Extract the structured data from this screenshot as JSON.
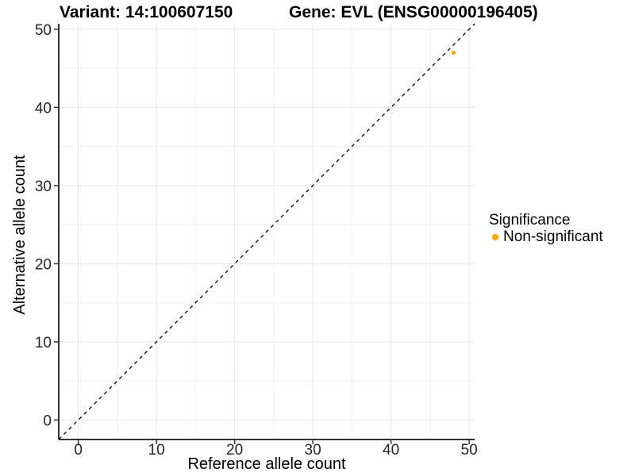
{
  "titles": {
    "variant": "Variant: 14:100607150",
    "gene": "Gene: EVL (ENSG00000196405)"
  },
  "legend": {
    "title": "Significance",
    "items": [
      {
        "label": "Non-significant",
        "color": "#FFA500"
      }
    ]
  },
  "chart_data": {
    "type": "scatter",
    "title": "Variant: 14:100607150 — Gene: EVL (ENSG00000196405)",
    "xlabel": "Reference allele count",
    "ylabel": "Alternative allele count",
    "xlim": [
      -2.5,
      50.7
    ],
    "ylim": [
      -2.5,
      50.7
    ],
    "xticks": [
      0,
      10,
      20,
      30,
      40,
      50
    ],
    "yticks": [
      0,
      10,
      20,
      30,
      40,
      50
    ],
    "minor_xticks": [
      5,
      15,
      25,
      35,
      45
    ],
    "minor_yticks": [
      5,
      15,
      25,
      35,
      45
    ],
    "grid": "major+minor",
    "legend_position": "right",
    "series": [
      {
        "name": "Non-significant",
        "color": "#FFA500",
        "points": [
          {
            "x": 48,
            "y": 47
          }
        ]
      }
    ],
    "identity_line": {
      "style": "dashed",
      "color": "#000000",
      "equation": "y = x"
    }
  },
  "style": {
    "grid_major_color": "#E6E6E6",
    "grid_minor_color": "#F2F2F2",
    "axis_line_color": "#333333",
    "tick_color": "#333333",
    "tick_label_color": "#262626",
    "background": "#FFFFFF"
  }
}
